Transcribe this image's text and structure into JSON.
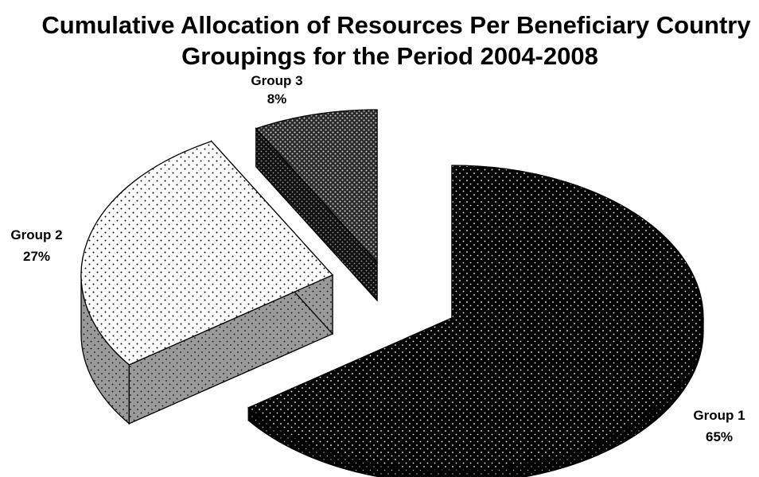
{
  "chart_data": {
    "type": "pie",
    "title_lines": [
      "Cumulative Allocation of Resources Per Beneficiary Country",
      "Groupings for the Period 2004-2008"
    ],
    "categories": [
      "Group 1",
      "Group 2",
      "Group 3"
    ],
    "values": [
      65,
      27,
      8
    ],
    "value_labels": [
      "65%",
      "27%",
      "8%"
    ],
    "exploded": true,
    "three_d": true,
    "colors": {
      "group1": "#000000",
      "group2": "#ffffff",
      "group2_side": "#9a9a9a",
      "group3": "#2a2a2a",
      "outline": "#000000"
    }
  }
}
